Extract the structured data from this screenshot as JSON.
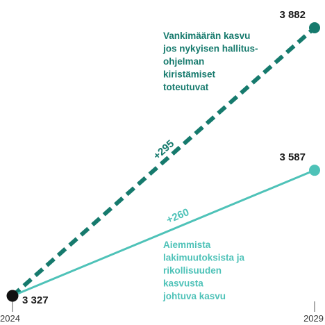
{
  "chart_data": {
    "type": "line",
    "x": [
      2024,
      2029
    ],
    "x_tick_labels": [
      "2024",
      "2029"
    ],
    "ylim": [
      3327,
      3882
    ],
    "grid": false,
    "colors": {
      "dashed": "#167a6d",
      "solid": "#4ec2b8",
      "start": "#111111"
    },
    "series": [
      {
        "values": [
          3327,
          3882
        ],
        "line_style": "dashed",
        "end_label": "3 882",
        "change_label": "+295",
        "annotation": [
          "Vankimäärän kasvu",
          "jos nykyisen hallitus-",
          "ohjelman",
          "kiristämiset",
          "toteutuvat"
        ]
      },
      {
        "values": [
          3327,
          3587
        ],
        "line_style": "solid",
        "end_label": "3 587",
        "change_label": "+260",
        "annotation": [
          "Aiemmista",
          "lakimuutoksista ja",
          "rikollisuuden",
          "kasvusta",
          "johtuva kasvu"
        ]
      }
    ],
    "start_label": "3 327"
  }
}
